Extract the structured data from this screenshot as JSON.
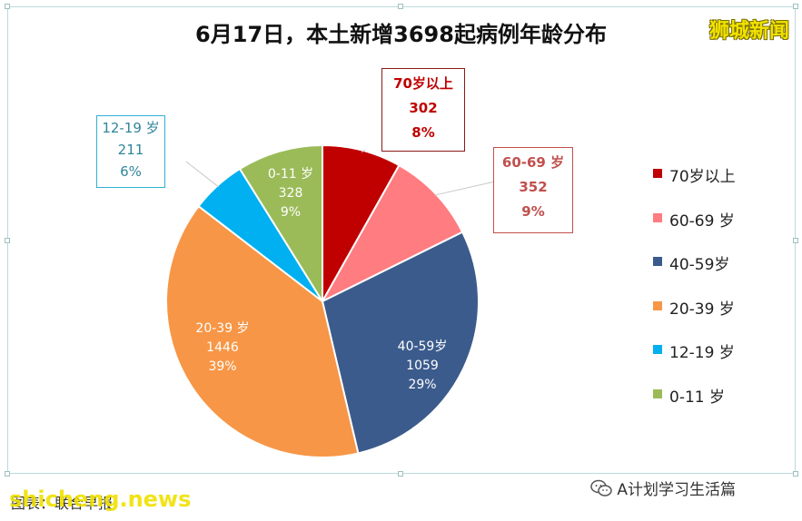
{
  "header": {
    "title": "6月17日，本土新增3698起病例年龄分布",
    "brand": "狮城新闻"
  },
  "colors": {
    "70_plus": "#c00000",
    "60_69": "#ff7c80",
    "40_59": "#3b5b8c",
    "20_39": "#f79646",
    "12_19": "#00b0f0",
    "0_11": "#9bbb59"
  },
  "chart_data": {
    "type": "pie",
    "title": "6月17日，本土新增3698起病例年龄分布",
    "legend_position": "right",
    "total": 3698,
    "slices": [
      {
        "label": "70岁以上",
        "value": 302,
        "percent": "8%",
        "color": "#c00000"
      },
      {
        "label": "60-69 岁",
        "value": 352,
        "percent": "9%",
        "color": "#ff7c80"
      },
      {
        "label": "40-59岁",
        "value": 1059,
        "percent": "29%",
        "color": "#3b5b8c"
      },
      {
        "label": "20-39 岁",
        "value": 1446,
        "percent": "39%",
        "color": "#f79646"
      },
      {
        "label": "12-19 岁",
        "value": 211,
        "percent": "6%",
        "color": "#00b0f0"
      },
      {
        "label": "0-11 岁",
        "value": 328,
        "percent": "9%",
        "color": "#9bbb59"
      }
    ]
  },
  "footer": {
    "left": "图表：联合早报",
    "watermark": "shicheng.news",
    "right": "A计划学习生活篇"
  }
}
